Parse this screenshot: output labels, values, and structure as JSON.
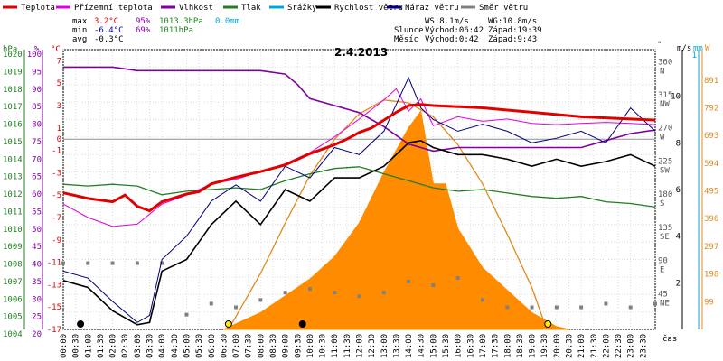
{
  "chart_data": {
    "type": "line",
    "title": "2.4.2013",
    "legend": [
      {
        "name": "Teplota",
        "color": "#e00000"
      },
      {
        "name": "Přízemní teplota",
        "color": "#e000e0"
      },
      {
        "name": "Vlhkost",
        "color": "#8000a0"
      },
      {
        "name": "Tlak",
        "color": "#208020"
      },
      {
        "name": "Srážky",
        "color": "#00a8d8"
      },
      {
        "name": "Rychlost větru",
        "color": "#000000"
      },
      {
        "name": "Náraz větru",
        "color": "#000080"
      },
      {
        "name": "Směr větru",
        "color": "#808080"
      }
    ],
    "stats": {
      "max_label": "max",
      "min_label": "min",
      "avg_label": "avg",
      "max_temp": "3.2°C",
      "max_hum": "95%",
      "max_press": "1013.3hPa",
      "max_rain": "0.0mm",
      "min_temp": "-6.4°C",
      "min_hum": "69%",
      "min_press": "1011hPa",
      "avg_temp": "-0.3°C"
    },
    "info": {
      "ws": "WS:8.1m/s",
      "wg": "WG:10.8m/s",
      "sun_label": "Slunce",
      "sun_rise": "Východ:06:42",
      "sun_set": "Západ:19:39",
      "moon_label": "Měsíc",
      "moon_rise": "Východ:0:42",
      "moon_set": "Západ:9:43"
    },
    "axes": {
      "hpa_unit": "hPa",
      "hpa_ticks": [
        "1020",
        "1019",
        "1018",
        "1017",
        "1016",
        "1015",
        "1014",
        "1013",
        "1012",
        "1011",
        "1010",
        "1009",
        "1008",
        "1007",
        "1006",
        "1005",
        "1004"
      ],
      "pct_unit": "%",
      "pct_ticks": [
        "100",
        "95",
        "90",
        "85",
        "80",
        "75",
        "70",
        "65",
        "60",
        "55",
        "50",
        "45",
        "40",
        "35",
        "30",
        "25",
        "20"
      ],
      "temp_unit": "°C",
      "temp_ticks": [
        "7",
        "5",
        "3",
        "1",
        "0",
        "-1",
        "-3",
        "-5",
        "-7",
        "-9",
        "-11",
        "-13",
        "-15",
        "-17"
      ],
      "dir_unit": "°",
      "dir_ticks": [
        {
          "v": "360",
          "d": "N"
        },
        {
          "v": "315",
          "d": "NW"
        },
        {
          "v": "270",
          "d": "W"
        },
        {
          "v": "225",
          "d": "SW"
        },
        {
          "v": "180",
          "d": "S"
        },
        {
          "v": "135",
          "d": "SE"
        },
        {
          "v": "90",
          "d": "E"
        },
        {
          "v": "45",
          "d": "NE"
        }
      ],
      "ms_unit": "m/s",
      "ms_ticks": [
        "10",
        "8",
        "6",
        "4",
        "2"
      ],
      "mm_unit": "mm",
      "mm_top": "1",
      "w_unit": "W",
      "w_ticks": [
        "891",
        "792",
        "693",
        "594",
        "495",
        "396",
        "297",
        "198",
        "99"
      ],
      "x_unit": "čas",
      "x_ticks": [
        "00:00",
        "00:30",
        "01:00",
        "01:30",
        "02:00",
        "02:30",
        "03:00",
        "03:30",
        "04:00",
        "04:30",
        "05:00",
        "05:30",
        "06:00",
        "06:30",
        "07:00",
        "07:30",
        "08:00",
        "08:30",
        "09:00",
        "09:30",
        "10:00",
        "10:30",
        "11:00",
        "11:30",
        "12:00",
        "12:30",
        "13:00",
        "13:30",
        "14:00",
        "14:30",
        "15:00",
        "15:30",
        "16:00",
        "16:30",
        "17:00",
        "17:30",
        "18:00",
        "18:30",
        "19:00",
        "19:30",
        "20:00",
        "20:30",
        "21:00",
        "21:30",
        "22:00",
        "22:30",
        "23:00",
        "23:30"
      ]
    },
    "ylim_temp": [
      -17,
      8
    ],
    "ylim_hum": [
      20,
      100
    ],
    "ylim_press": [
      1004,
      1020
    ],
    "ylim_wind": [
      0,
      12
    ],
    "ylim_solar": [
      0,
      1000
    ],
    "temperature": [
      [
        0,
        -4.8
      ],
      [
        1,
        -5.3
      ],
      [
        2,
        -5.6
      ],
      [
        2.5,
        -5.0
      ],
      [
        3,
        -6.0
      ],
      [
        3.5,
        -6.4
      ],
      [
        4,
        -5.6
      ],
      [
        5,
        -4.9
      ],
      [
        5.5,
        -4.7
      ],
      [
        6,
        -4.0
      ],
      [
        7,
        -3.4
      ],
      [
        8,
        -2.9
      ],
      [
        9,
        -2.3
      ],
      [
        9.5,
        -1.8
      ],
      [
        10,
        -1.3
      ],
      [
        11,
        -0.5
      ],
      [
        11.5,
        0.0
      ],
      [
        12,
        0.6
      ],
      [
        12.5,
        1.0
      ],
      [
        13,
        1.7
      ],
      [
        13.5,
        2.4
      ],
      [
        14,
        3.0
      ],
      [
        14.5,
        3.1
      ],
      [
        15,
        3.0
      ],
      [
        16,
        2.9
      ],
      [
        17,
        2.8
      ],
      [
        18,
        2.6
      ],
      [
        19,
        2.4
      ],
      [
        20,
        2.2
      ],
      [
        21,
        2.0
      ],
      [
        22,
        1.9
      ],
      [
        23,
        1.8
      ],
      [
        24,
        1.7
      ]
    ],
    "ground_temperature": [
      [
        0,
        -5.8
      ],
      [
        1,
        -7.0
      ],
      [
        2,
        -7.8
      ],
      [
        3,
        -7.6
      ],
      [
        4,
        -5.8
      ],
      [
        5,
        -5.0
      ],
      [
        6,
        -4.0
      ],
      [
        7,
        -3.6
      ],
      [
        8,
        -2.9
      ],
      [
        9,
        -2.2
      ],
      [
        10,
        -1.2
      ],
      [
        11,
        0.2
      ],
      [
        12,
        1.8
      ],
      [
        13,
        3.5
      ],
      [
        13.5,
        4.5
      ],
      [
        14,
        2.5
      ],
      [
        14.5,
        3.6
      ],
      [
        15,
        1.2
      ],
      [
        16,
        2.0
      ],
      [
        17,
        1.6
      ],
      [
        18,
        1.8
      ],
      [
        19,
        1.4
      ],
      [
        20,
        1.3
      ],
      [
        21,
        1.4
      ],
      [
        22,
        1.5
      ],
      [
        23,
        1.4
      ],
      [
        24,
        1.3
      ]
    ],
    "humidity": [
      [
        0,
        95
      ],
      [
        2,
        95
      ],
      [
        3,
        94
      ],
      [
        4,
        94
      ],
      [
        5,
        94
      ],
      [
        6,
        94
      ],
      [
        7,
        94
      ],
      [
        8,
        94
      ],
      [
        9,
        93
      ],
      [
        9.5,
        90
      ],
      [
        10,
        86
      ],
      [
        11,
        84
      ],
      [
        12,
        82
      ],
      [
        13,
        78
      ],
      [
        14,
        73
      ],
      [
        15,
        71
      ],
      [
        16,
        72
      ],
      [
        17,
        72
      ],
      [
        18,
        72
      ],
      [
        19,
        72
      ],
      [
        20,
        72
      ],
      [
        21,
        72
      ],
      [
        22,
        74
      ],
      [
        23,
        76
      ],
      [
        24,
        77
      ]
    ],
    "pressure": [
      [
        0,
        1012.3
      ],
      [
        1,
        1012.2
      ],
      [
        2,
        1012.3
      ],
      [
        3,
        1012.2
      ],
      [
        4,
        1011.7
      ],
      [
        5,
        1011.9
      ],
      [
        6,
        1012.0
      ],
      [
        7,
        1012.1
      ],
      [
        8,
        1012.0
      ],
      [
        9,
        1012.5
      ],
      [
        10,
        1012.9
      ],
      [
        11,
        1013.2
      ],
      [
        12,
        1013.3
      ],
      [
        13,
        1012.9
      ],
      [
        14,
        1012.5
      ],
      [
        15,
        1012.1
      ],
      [
        16,
        1011.9
      ],
      [
        17,
        1012.0
      ],
      [
        18,
        1011.8
      ],
      [
        19,
        1011.6
      ],
      [
        20,
        1011.5
      ],
      [
        21,
        1011.6
      ],
      [
        22,
        1011.3
      ],
      [
        23,
        1011.2
      ],
      [
        24,
        1011.0
      ]
    ],
    "wind_speed": [
      [
        0,
        2.1
      ],
      [
        1,
        1.8
      ],
      [
        2,
        0.8
      ],
      [
        3,
        0.2
      ],
      [
        3.5,
        0.3
      ],
      [
        4,
        2.5
      ],
      [
        5,
        3.0
      ],
      [
        6,
        4.5
      ],
      [
        7,
        5.5
      ],
      [
        8,
        4.5
      ],
      [
        9,
        6.0
      ],
      [
        10,
        5.5
      ],
      [
        11,
        6.5
      ],
      [
        12,
        6.5
      ],
      [
        13,
        7.0
      ],
      [
        14,
        8.0
      ],
      [
        14.5,
        8.1
      ],
      [
        15,
        7.8
      ],
      [
        16,
        7.5
      ],
      [
        17,
        7.5
      ],
      [
        18,
        7.3
      ],
      [
        19,
        7.0
      ],
      [
        20,
        7.3
      ],
      [
        21,
        7.0
      ],
      [
        22,
        7.2
      ],
      [
        23,
        7.5
      ],
      [
        24,
        7.0
      ]
    ],
    "wind_gust": [
      [
        0,
        2.5
      ],
      [
        1,
        2.2
      ],
      [
        2,
        1.2
      ],
      [
        3,
        0.3
      ],
      [
        3.5,
        0.6
      ],
      [
        4,
        3.0
      ],
      [
        5,
        4.0
      ],
      [
        6,
        5.5
      ],
      [
        7,
        6.2
      ],
      [
        8,
        5.5
      ],
      [
        9,
        7.0
      ],
      [
        10,
        6.5
      ],
      [
        11,
        7.8
      ],
      [
        12,
        7.5
      ],
      [
        13,
        8.5
      ],
      [
        14,
        10.8
      ],
      [
        14.5,
        9.5
      ],
      [
        15,
        9.0
      ],
      [
        16,
        8.5
      ],
      [
        17,
        8.8
      ],
      [
        18,
        8.5
      ],
      [
        19,
        8.0
      ],
      [
        20,
        8.2
      ],
      [
        21,
        8.5
      ],
      [
        22,
        8.0
      ],
      [
        23,
        9.5
      ],
      [
        24,
        8.5
      ]
    ],
    "wind_direction": [
      [
        0,
        90
      ],
      [
        1,
        90
      ],
      [
        2,
        90
      ],
      [
        3,
        90
      ],
      [
        4,
        90
      ],
      [
        5,
        20
      ],
      [
        6,
        35
      ],
      [
        7,
        30
      ],
      [
        8,
        40
      ],
      [
        9,
        50
      ],
      [
        10,
        55
      ],
      [
        11,
        50
      ],
      [
        12,
        45
      ],
      [
        13,
        50
      ],
      [
        14,
        65
      ],
      [
        15,
        60
      ],
      [
        16,
        70
      ],
      [
        17,
        40
      ],
      [
        18,
        30
      ],
      [
        19,
        30
      ],
      [
        20,
        30
      ],
      [
        21,
        30
      ],
      [
        22,
        35
      ],
      [
        23,
        30
      ],
      [
        24,
        35
      ]
    ],
    "solar": [
      [
        6.5,
        0
      ],
      [
        7,
        20
      ],
      [
        8,
        60
      ],
      [
        9,
        120
      ],
      [
        10,
        180
      ],
      [
        11,
        260
      ],
      [
        12,
        380
      ],
      [
        13,
        560
      ],
      [
        14,
        720
      ],
      [
        14.5,
        780
      ],
      [
        15,
        520
      ],
      [
        15.5,
        520
      ],
      [
        16,
        360
      ],
      [
        17,
        220
      ],
      [
        18,
        140
      ],
      [
        19,
        60
      ],
      [
        20,
        10
      ],
      [
        20.5,
        0
      ]
    ],
    "solar_theoretical": [
      [
        6.7,
        0
      ],
      [
        8,
        200
      ],
      [
        9,
        380
      ],
      [
        10,
        550
      ],
      [
        11,
        680
      ],
      [
        12,
        770
      ],
      [
        13,
        820
      ],
      [
        14,
        810
      ],
      [
        15,
        760
      ],
      [
        16,
        660
      ],
      [
        17,
        520
      ],
      [
        18,
        340
      ],
      [
        19,
        150
      ],
      [
        19.6,
        0
      ]
    ],
    "sun_moon_events": [
      {
        "t": 0.7,
        "kind": "moon"
      },
      {
        "t": 6.7,
        "kind": "sun"
      },
      {
        "t": 9.7,
        "kind": "moon"
      },
      {
        "t": 19.65,
        "kind": "sun"
      }
    ]
  }
}
